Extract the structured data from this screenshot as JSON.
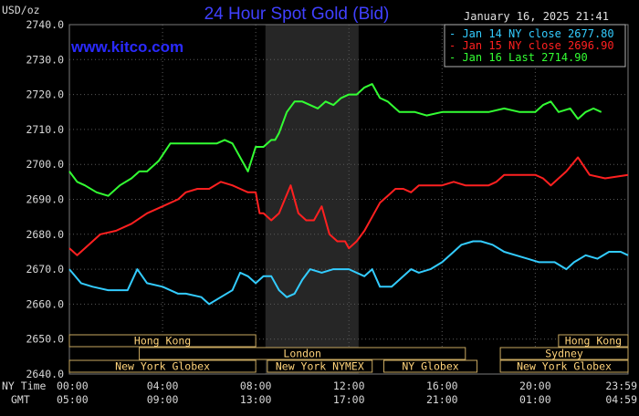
{
  "chart_data": {
    "type": "line",
    "title": "24 Hour Spot Gold (Bid)",
    "ylabel": "USD/oz",
    "ylim": [
      2640,
      2740
    ],
    "yticks": [
      "2740.0",
      "2730.0",
      "2720.0",
      "2710.0",
      "2700.0",
      "2690.0",
      "2680.0",
      "2670.0",
      "2660.0",
      "2650.0",
      "2640.0"
    ],
    "xlim": [
      0,
      1439
    ],
    "xticks_ny": [
      {
        "x": 0,
        "label": "00:00"
      },
      {
        "x": 240,
        "label": "04:00"
      },
      {
        "x": 480,
        "label": "08:00"
      },
      {
        "x": 720,
        "label": "12:00"
      },
      {
        "x": 960,
        "label": "16:00"
      },
      {
        "x": 1200,
        "label": "20:00"
      },
      {
        "x": 1439,
        "label": "23:59"
      }
    ],
    "xticks_gmt": [
      {
        "x": 0,
        "label": "05:00"
      },
      {
        "x": 240,
        "label": "09:00"
      },
      {
        "x": 480,
        "label": "13:00"
      },
      {
        "x": 720,
        "label": "17:00"
      },
      {
        "x": 960,
        "label": "21:00"
      },
      {
        "x": 1200,
        "label": "01:00"
      },
      {
        "x": 1439,
        "label": "04:59"
      }
    ],
    "row_labels": {
      "ny": "NY Time",
      "gmt": "GMT"
    },
    "date_stamp": "January 16, 2025 21:41",
    "brand": "www.kitco.com",
    "shaded_range": [
      505,
      745
    ],
    "legend_position": "top-right",
    "legend": [
      {
        "label": "- Jan 14 NY close 2677.80",
        "color": "#33ccff"
      },
      {
        "label": "- Jan 15 NY close 2696.90",
        "color": "#ff2020"
      },
      {
        "label": "- Jan 16 Last 2714.90",
        "color": "#33ff33"
      }
    ],
    "series": [
      {
        "color": "#33ccff",
        "x": [
          0,
          30,
          60,
          100,
          150,
          175,
          200,
          240,
          280,
          300,
          340,
          360,
          390,
          420,
          440,
          460,
          480,
          500,
          520,
          540,
          560,
          580,
          600,
          620,
          650,
          680,
          720,
          760,
          780,
          800,
          830,
          860,
          880,
          900,
          930,
          960,
          990,
          1010,
          1040,
          1060,
          1090,
          1120,
          1150,
          1180,
          1210,
          1250,
          1280,
          1300,
          1330,
          1360,
          1390,
          1420,
          1439
        ],
        "y": [
          2670,
          2666,
          2665,
          2664,
          2664,
          2670,
          2666,
          2665,
          2663,
          2663,
          2662,
          2660,
          2662,
          2664,
          2669,
          2668,
          2666,
          2668,
          2668,
          2664,
          2662,
          2663,
          2667,
          2670,
          2669,
          2670,
          2670,
          2668,
          2670,
          2665,
          2665,
          2668,
          2670,
          2669,
          2670,
          2672,
          2675,
          2677,
          2678,
          2678,
          2677,
          2675,
          2674,
          2673,
          2672,
          2672,
          2670,
          2672,
          2674,
          2673,
          2675,
          2675,
          2674
        ]
      },
      {
        "color": "#ff2020",
        "x": [
          0,
          20,
          40,
          80,
          120,
          160,
          200,
          240,
          280,
          300,
          330,
          360,
          390,
          420,
          440,
          460,
          480,
          490,
          500,
          520,
          540,
          555,
          570,
          590,
          610,
          630,
          650,
          670,
          690,
          710,
          720,
          740,
          760,
          780,
          800,
          820,
          840,
          860,
          880,
          900,
          930,
          960,
          990,
          1020,
          1060,
          1080,
          1100,
          1120,
          1140,
          1170,
          1200,
          1220,
          1240,
          1260,
          1280,
          1310,
          1340,
          1380,
          1439
        ],
        "y": [
          2676,
          2674,
          2676,
          2680,
          2681,
          2683,
          2686,
          2688,
          2690,
          2692,
          2693,
          2693,
          2695,
          2694,
          2693,
          2692,
          2692,
          2686,
          2686,
          2684,
          2686,
          2690,
          2694,
          2686,
          2684,
          2684,
          2688,
          2680,
          2678,
          2678,
          2676,
          2678,
          2681,
          2685,
          2689,
          2691,
          2693,
          2693,
          2692,
          2694,
          2694,
          2694,
          2695,
          2694,
          2694,
          2694,
          2695,
          2697,
          2697,
          2697,
          2697,
          2696,
          2694,
          2696,
          2698,
          2702,
          2697,
          2696,
          2697
        ]
      },
      {
        "color": "#33ff33",
        "x": [
          0,
          20,
          40,
          70,
          100,
          130,
          160,
          180,
          200,
          230,
          260,
          290,
          320,
          350,
          380,
          400,
          420,
          440,
          460,
          480,
          500,
          520,
          530,
          540,
          560,
          580,
          600,
          640,
          660,
          680,
          700,
          720,
          740,
          760,
          780,
          800,
          820,
          830,
          850,
          870,
          890,
          920,
          960,
          1000,
          1040,
          1080,
          1120,
          1160,
          1200,
          1220,
          1240,
          1260,
          1290,
          1310,
          1330,
          1350,
          1370
        ],
        "y": [
          2698,
          2695,
          2694,
          2692,
          2691,
          2694,
          2696,
          2698,
          2698,
          2701,
          2706,
          2706,
          2706,
          2706,
          2706,
          2707,
          2706,
          2702,
          2698,
          2705,
          2705,
          2707,
          2707,
          2709,
          2715,
          2718,
          2718,
          2716,
          2718,
          2717,
          2719,
          2720,
          2720,
          2722,
          2723,
          2719,
          2718,
          2717,
          2715,
          2715,
          2715,
          2714,
          2715,
          2715,
          2715,
          2715,
          2716,
          2715,
          2715,
          2717,
          2718,
          2715,
          2716,
          2713,
          2715,
          2716,
          2715
        ]
      }
    ]
  },
  "sessions": [
    {
      "label": "Hong Kong",
      "row": 0,
      "start": 0,
      "end": 480
    },
    {
      "label": "Hong Kong",
      "row": 0,
      "start": 1260,
      "end": 1439
    },
    {
      "label": "London",
      "row": 1,
      "start": 180,
      "end": 1020
    },
    {
      "label": "Sydney",
      "row": 1,
      "start": 1110,
      "end": 1439
    },
    {
      "label": "New York Globex",
      "row": 2,
      "start": 0,
      "end": 480
    },
    {
      "label": "New York NYMEX",
      "row": 2,
      "start": 510,
      "end": 780
    },
    {
      "label": "NY Globex",
      "row": 2,
      "start": 810,
      "end": 1050
    },
    {
      "label": "New York Globex",
      "row": 2,
      "start": 1110,
      "end": 1439
    }
  ]
}
